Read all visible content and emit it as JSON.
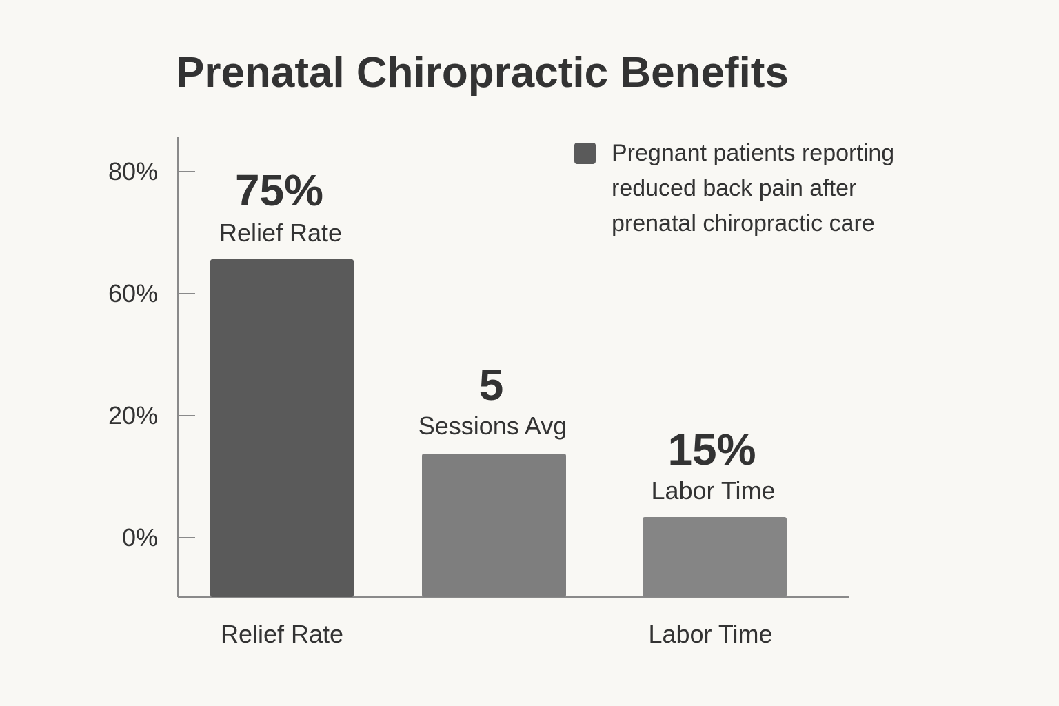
{
  "chart_data": {
    "type": "bar",
    "title": "Prenatal Chiropractic Benefits",
    "xlabel": "",
    "ylabel": "",
    "ylim": [
      0,
      80
    ],
    "y_ticks": [
      {
        "value": 0,
        "label": "0%"
      },
      {
        "value": 20,
        "label": "20%"
      },
      {
        "value": 60,
        "label": "60%"
      },
      {
        "value": 80,
        "label": "80%"
      }
    ],
    "categories": [
      "Relief Rate",
      "Sessions Avg",
      "Labor Time"
    ],
    "x_tick_labels": [
      "Relief Rate",
      "",
      "Labor Time"
    ],
    "values": [
      75,
      5,
      15
    ],
    "value_labels": [
      "75%",
      "5",
      "15%"
    ],
    "bar_sublabels": [
      "Relief Rate",
      "Sessions Avg",
      "Labor Time"
    ],
    "bar_colors": [
      "#5a5a5a",
      "#7e7e7e",
      "#858585"
    ],
    "legend": {
      "position": "top-right",
      "lines": [
        "Pregnant patients reporting",
        "reduced back pain after",
        "prenatal chiropractic care"
      ],
      "color": "#5a5a5a"
    },
    "grid": false,
    "axis_color": "#8a8a8a",
    "background": "#f9f8f4"
  }
}
